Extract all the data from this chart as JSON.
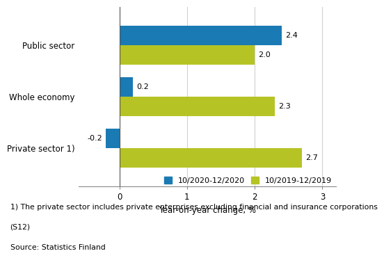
{
  "categories": [
    "Private sector 1)",
    "Whole economy",
    "Public sector"
  ],
  "series": [
    {
      "label": "10/2020-12/2020",
      "color": "#1a7ab3",
      "values": [
        -0.2,
        0.2,
        2.4
      ]
    },
    {
      "label": "10/2019-12/2019",
      "color": "#b5c424",
      "values": [
        2.7,
        2.3,
        2.0
      ]
    }
  ],
  "value_labels": [
    [
      "-0.2",
      "0.2",
      "2.4"
    ],
    [
      "2.7",
      "2.3",
      "2.0"
    ]
  ],
  "xlim": [
    -0.6,
    3.2
  ],
  "xticks": [
    0,
    1,
    2,
    3
  ],
  "xlabel": "Year-on-year change, %",
  "bar_height": 0.38,
  "footnote_line1": "1) The private sector includes private enterprises excluding financial and insurance corporations",
  "footnote_line2": "(S12)",
  "source": "Source: Statistics Finland",
  "label_fontsize": 8.0,
  "axis_fontsize": 8.5,
  "legend_fontsize": 8.0,
  "footnote_fontsize": 7.8,
  "bg_color": "#ffffff",
  "grid_color": "#d0d0d0"
}
